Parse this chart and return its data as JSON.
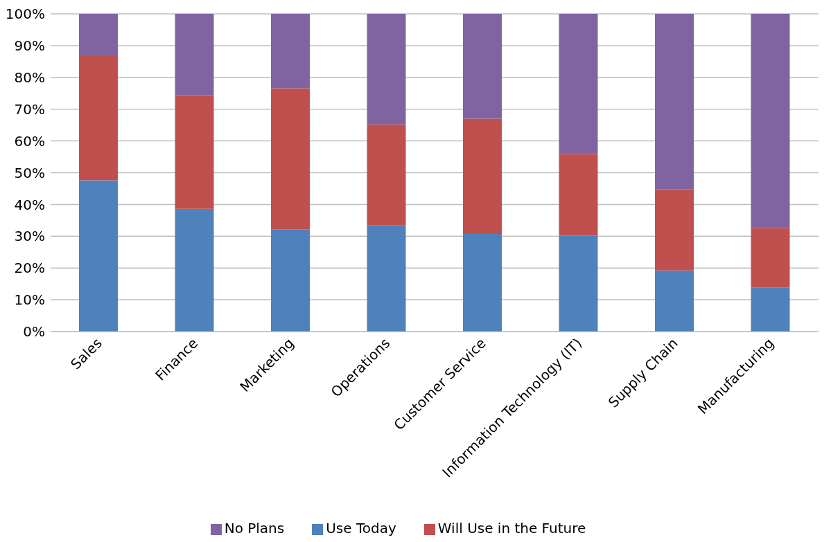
{
  "chart_data": {
    "type": "bar",
    "stacked": true,
    "categories": [
      "Sales",
      "Finance",
      "Marketing",
      "Operations",
      "Customer Service",
      "Information Technology (IT)",
      "Supply Chain",
      "Manufacturing"
    ],
    "series": [
      {
        "name": "Use Today",
        "color": "#4f81bd",
        "values": [
          47.6,
          38.6,
          32.2,
          33.4,
          30.7,
          30.2,
          19.2,
          13.9
        ]
      },
      {
        "name": "Will Use in the Future",
        "color": "#c0504d",
        "values": [
          39.1,
          35.8,
          44.4,
          31.8,
          36.3,
          25.7,
          25.5,
          18.7
        ]
      },
      {
        "name": "No Plans",
        "color": "#8064a2",
        "values": [
          13.3,
          25.6,
          23.4,
          34.8,
          33.0,
          44.1,
          55.3,
          67.4
        ]
      }
    ],
    "ylim": [
      0,
      100
    ],
    "yticks": [
      {
        "value": 0,
        "label": "0%"
      },
      {
        "value": 10,
        "label": "10%"
      },
      {
        "value": 20,
        "label": "20%"
      },
      {
        "value": 30,
        "label": "30%"
      },
      {
        "value": 40,
        "label": "40%"
      },
      {
        "value": 50,
        "label": "50%"
      },
      {
        "value": 60,
        "label": "60%"
      },
      {
        "value": 70,
        "label": "70%"
      },
      {
        "value": 80,
        "label": "80%"
      },
      {
        "value": 90,
        "label": "90%"
      },
      {
        "value": 100,
        "label": "100%"
      }
    ],
    "grid": "y",
    "legend": "bottom"
  }
}
